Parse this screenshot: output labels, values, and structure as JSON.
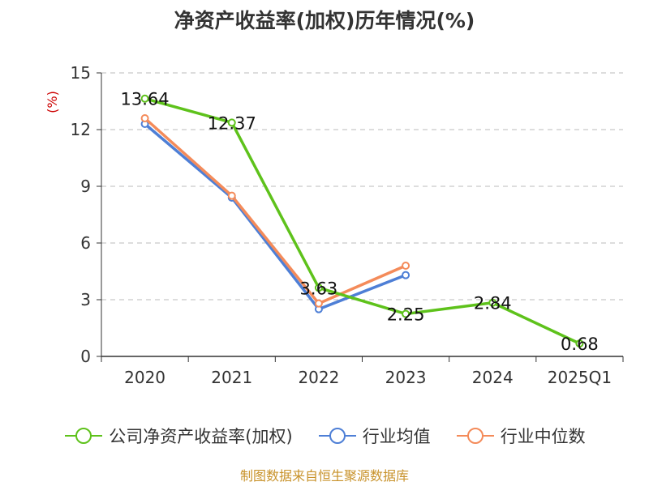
{
  "title": "净资产收益率(加权)历年情况(%)",
  "source": "制图数据来自恒生聚源数据库",
  "chart_data": {
    "type": "line",
    "title": "净资产收益率(加权)历年情况(%)",
    "ylabel": "(%)",
    "xlabel": "",
    "categories": [
      "2020",
      "2021",
      "2022",
      "2023",
      "2024",
      "2025Q1"
    ],
    "yticks": [
      "0",
      "3",
      "6",
      "9",
      "12",
      "15"
    ],
    "ylim": [
      0,
      15
    ],
    "grid": true,
    "legend_position": "bottom",
    "series": [
      {
        "name": "公司净资产收益率(加权)",
        "color": "#5ec21b",
        "values": [
          13.64,
          12.37,
          3.63,
          2.25,
          2.84,
          0.68
        ],
        "labels": [
          "13.64",
          "12.37",
          "3.63",
          "2.25",
          "2.84",
          "0.68"
        ]
      },
      {
        "name": "行业均值",
        "color": "#4e7fd6",
        "values": [
          12.3,
          8.4,
          2.5,
          4.3,
          null,
          null
        ]
      },
      {
        "name": "行业中位数",
        "color": "#f48b5a",
        "values": [
          12.6,
          8.5,
          2.8,
          4.8,
          null,
          null
        ]
      }
    ]
  }
}
